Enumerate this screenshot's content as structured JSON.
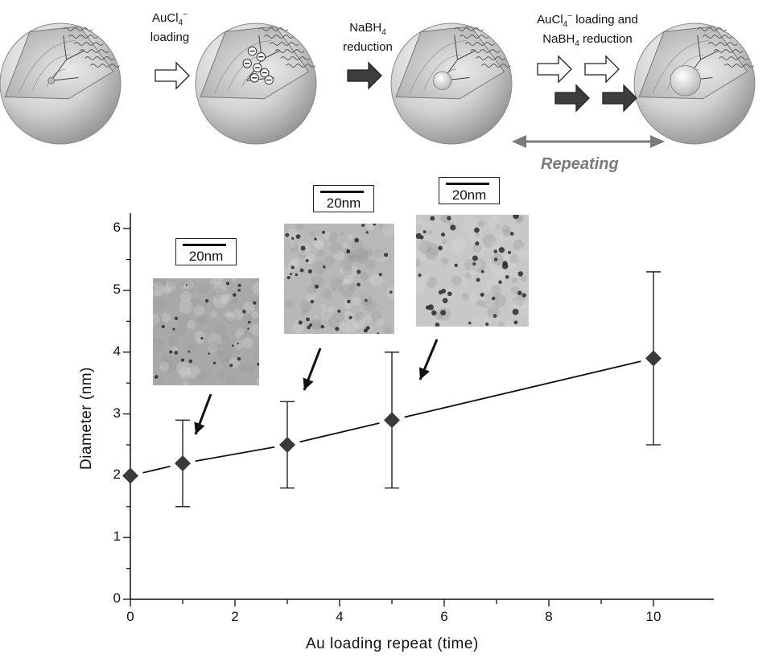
{
  "scheme": {
    "step1_label": [
      "AuCl4⁻",
      "loading"
    ],
    "step2_label": [
      "NaBH4",
      "reduction"
    ],
    "step3_label": [
      "AuCl4⁻ loading and",
      "NaBH4 reduction"
    ],
    "repeat_label": "Repeating"
  },
  "insets": [
    {
      "scale_label": "20nm",
      "target_x": 1
    },
    {
      "scale_label": "20nm",
      "target_x": 3
    },
    {
      "scale_label": "20nm",
      "target_x": 5
    }
  ],
  "chart_data": {
    "type": "scatter",
    "xlabel": "Au loading repeat (time)",
    "ylabel": "Diameter (nm)",
    "xlim": [
      0,
      11
    ],
    "ylim": [
      0,
      6.25
    ],
    "xticks": [
      0,
      2,
      4,
      6,
      8,
      10
    ],
    "yticks": [
      0,
      1,
      2,
      3,
      4,
      5,
      6
    ],
    "x": [
      0,
      1,
      3,
      5,
      10
    ],
    "y": [
      2.0,
      2.2,
      2.5,
      2.9,
      3.9
    ],
    "error_low": [
      2.0,
      1.5,
      1.8,
      1.8,
      2.5
    ],
    "error_high": [
      2.0,
      2.9,
      3.2,
      4.0,
      5.3
    ],
    "marker": "diamond",
    "line": "solid",
    "grid": false,
    "colors": {
      "marker": "#3a3a3a",
      "line": "#111111",
      "arrow_open": "#ffffff",
      "arrow_solid": "#3d3d3d",
      "repeat_arrow": "#7a7a7a"
    }
  }
}
